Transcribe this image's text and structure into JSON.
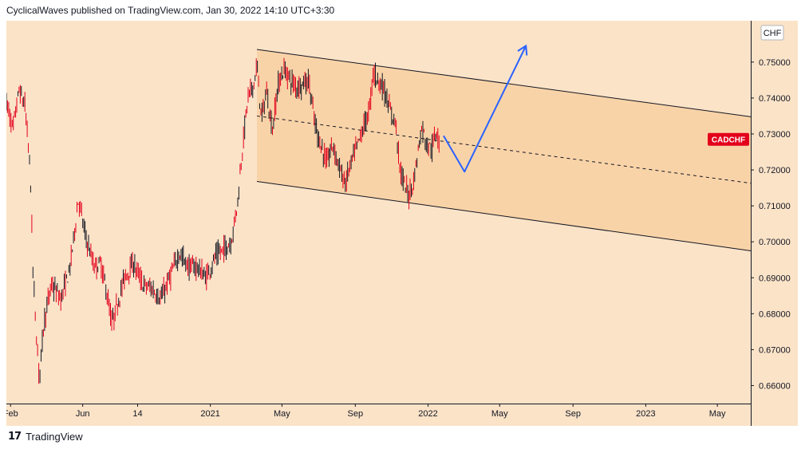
{
  "header": {
    "publisher_line": "CyclicalWaves published on TradingView.com, Jan 30, 2022 14:10 UTC+3:30"
  },
  "footer": {
    "logo_glyph": "17",
    "brand": "TradingView"
  },
  "chart_data": {
    "type": "candlestick",
    "symbol_label": "CADCHF",
    "currency_label": "CHF",
    "current_price": 0.7285,
    "colors": {
      "background": "#fbe3c8",
      "channel_fill": "#f9d3a8",
      "up_candle": "#131722",
      "down_candle": "#e3001b",
      "projection": "#2962ff",
      "label_bg": "#e3001b"
    },
    "ylim": [
      0.655,
      0.7615
    ],
    "y_ticks": [
      {
        "value": 0.75,
        "label": "0.75000"
      },
      {
        "value": 0.74,
        "label": "0.74000"
      },
      {
        "value": 0.73,
        "label": "0.73000"
      },
      {
        "value": 0.72,
        "label": "0.72000"
      },
      {
        "value": 0.71,
        "label": "0.71000"
      },
      {
        "value": 0.7,
        "label": "0.70000"
      },
      {
        "value": 0.69,
        "label": "0.69000"
      },
      {
        "value": 0.68,
        "label": "0.68000"
      },
      {
        "value": 0.67,
        "label": "0.67000"
      },
      {
        "value": 0.66,
        "label": "0.66000"
      }
    ],
    "x_range": [
      "2020-01-25",
      "2023-06-26"
    ],
    "x_ticks": [
      {
        "date": "2020-02-01",
        "label": "Feb"
      },
      {
        "date": "2020-06-01",
        "label": "Jun"
      },
      {
        "date": "2020-09-01",
        "label": "14"
      },
      {
        "date": "2021-01-01",
        "label": "2021"
      },
      {
        "date": "2021-05-01",
        "label": "May"
      },
      {
        "date": "2021-09-01",
        "label": "Sep"
      },
      {
        "date": "2022-01-01",
        "label": "2022"
      },
      {
        "date": "2022-05-01",
        "label": "May"
      },
      {
        "date": "2022-09-01",
        "label": "Sep"
      },
      {
        "date": "2023-01-01",
        "label": "2023"
      },
      {
        "date": "2023-05-01",
        "label": "May"
      }
    ],
    "price_path": [
      [
        "2020-01-25",
        0.739
      ],
      [
        "2020-02-05",
        0.731
      ],
      [
        "2020-02-15",
        0.742
      ],
      [
        "2020-02-25",
        0.738
      ],
      [
        "2020-03-05",
        0.72
      ],
      [
        "2020-03-10",
        0.69
      ],
      [
        "2020-03-15",
        0.675
      ],
      [
        "2020-03-20",
        0.662
      ],
      [
        "2020-03-28",
        0.678
      ],
      [
        "2020-04-10",
        0.688
      ],
      [
        "2020-04-25",
        0.684
      ],
      [
        "2020-05-10",
        0.692
      ],
      [
        "2020-05-25",
        0.712
      ],
      [
        "2020-06-05",
        0.702
      ],
      [
        "2020-06-20",
        0.693
      ],
      [
        "2020-07-01",
        0.694
      ],
      [
        "2020-07-10",
        0.687
      ],
      [
        "2020-07-20",
        0.677
      ],
      [
        "2020-07-28",
        0.682
      ],
      [
        "2020-08-10",
        0.69
      ],
      [
        "2020-08-25",
        0.694
      ],
      [
        "2020-09-10",
        0.688
      ],
      [
        "2020-09-25",
        0.687
      ],
      [
        "2020-10-10",
        0.684
      ],
      [
        "2020-10-25",
        0.69
      ],
      [
        "2020-11-10",
        0.697
      ],
      [
        "2020-11-25",
        0.693
      ],
      [
        "2020-12-10",
        0.693
      ],
      [
        "2020-12-25",
        0.69
      ],
      [
        "2021-01-10",
        0.696
      ],
      [
        "2021-01-25",
        0.698
      ],
      [
        "2021-02-05",
        0.7
      ],
      [
        "2021-02-15",
        0.71
      ],
      [
        "2021-02-25",
        0.728
      ],
      [
        "2021-03-05",
        0.74
      ],
      [
        "2021-03-15",
        0.744
      ],
      [
        "2021-03-20",
        0.749
      ],
      [
        "2021-03-28",
        0.734
      ],
      [
        "2021-04-05",
        0.742
      ],
      [
        "2021-04-15",
        0.731
      ],
      [
        "2021-04-25",
        0.744
      ],
      [
        "2021-05-05",
        0.748
      ],
      [
        "2021-05-15",
        0.745
      ],
      [
        "2021-05-25",
        0.743
      ],
      [
        "2021-06-05",
        0.744
      ],
      [
        "2021-06-15",
        0.745
      ],
      [
        "2021-06-25",
        0.733
      ],
      [
        "2021-07-05",
        0.727
      ],
      [
        "2021-07-15",
        0.722
      ],
      [
        "2021-07-25",
        0.727
      ],
      [
        "2021-08-05",
        0.721
      ],
      [
        "2021-08-15",
        0.716
      ],
      [
        "2021-08-25",
        0.722
      ],
      [
        "2021-09-05",
        0.727
      ],
      [
        "2021-09-15",
        0.732
      ],
      [
        "2021-09-25",
        0.737
      ],
      [
        "2021-10-01",
        0.747
      ],
      [
        "2021-10-10",
        0.745
      ],
      [
        "2021-10-20",
        0.742
      ],
      [
        "2021-10-30",
        0.736
      ],
      [
        "2021-11-08",
        0.733
      ],
      [
        "2021-11-15",
        0.72
      ],
      [
        "2021-11-22",
        0.716
      ],
      [
        "2021-11-30",
        0.713
      ],
      [
        "2021-12-08",
        0.717
      ],
      [
        "2021-12-15",
        0.725
      ],
      [
        "2021-12-22",
        0.732
      ],
      [
        "2021-12-30",
        0.727
      ],
      [
        "2022-01-08",
        0.726
      ],
      [
        "2022-01-15",
        0.731
      ],
      [
        "2022-01-20",
        0.728
      ]
    ],
    "channel": {
      "upper": [
        [
          "2021-03-20",
          0.7535
        ],
        [
          "2023-06-26",
          0.7348
        ]
      ],
      "lower": [
        [
          "2021-03-20",
          0.7168
        ],
        [
          "2023-06-26",
          0.6975
        ]
      ],
      "mid_dashed": [
        [
          "2021-03-20",
          0.735
        ],
        [
          "2023-06-26",
          0.7163
        ]
      ]
    },
    "projection_path": [
      [
        "2022-01-27",
        0.7295
      ],
      [
        "2022-03-03",
        0.7195
      ],
      [
        "2022-06-14",
        0.7545
      ]
    ]
  }
}
